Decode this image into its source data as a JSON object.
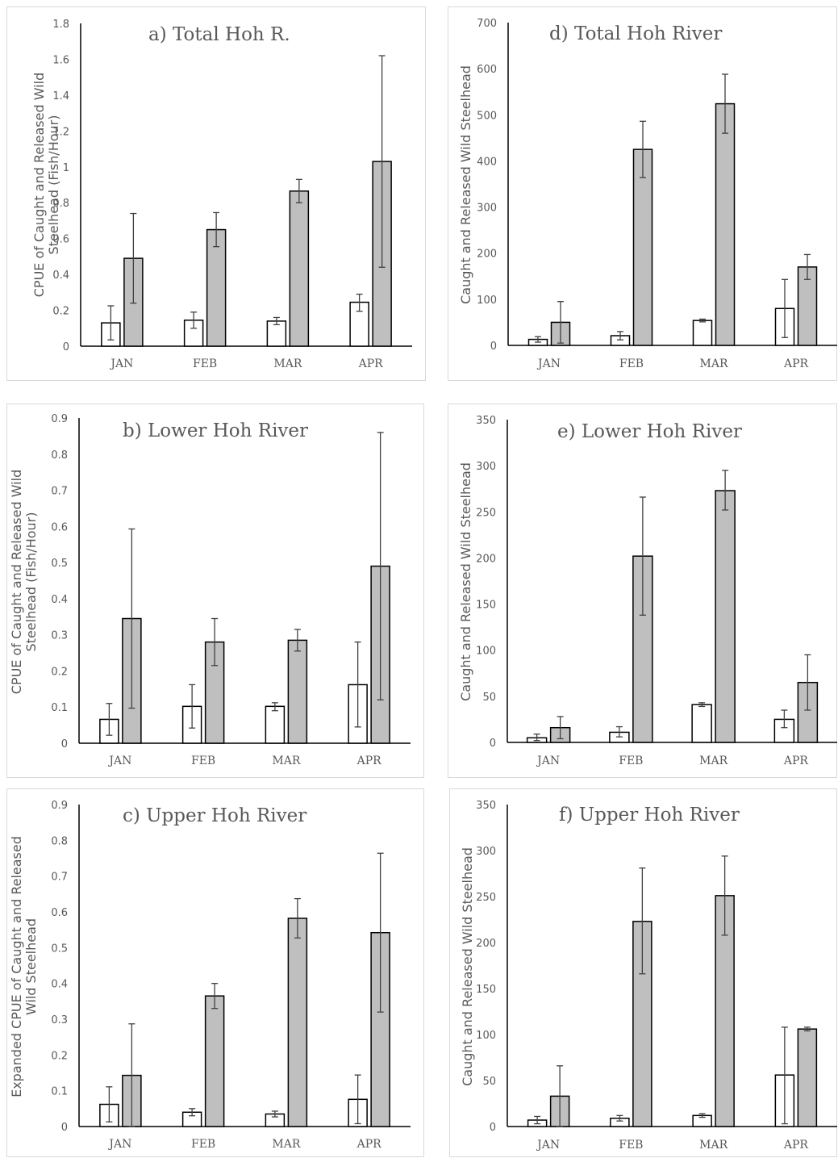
{
  "chart_data": [
    {
      "id": "a",
      "type": "bar",
      "title": "a) Total Hoh R.",
      "ylabel": [
        "CPUE of Caught and Released Wild",
        "Steelhead (Fish/Hour)"
      ],
      "categories": [
        "JAN",
        "FEB",
        "MAR",
        "APR"
      ],
      "ylim": [
        0,
        1.8
      ],
      "yticks": [
        "0",
        "0.2",
        "0.4",
        "0.6",
        "0.8",
        "1",
        "1.2",
        "1.4",
        "1.6",
        "1.8"
      ],
      "series": [
        {
          "color": "#ffffff",
          "values": [
            0.13,
            0.145,
            0.14,
            0.245
          ],
          "err_low": [
            0.035,
            0.1,
            0.12,
            0.195
          ],
          "err_high": [
            0.225,
            0.19,
            0.16,
            0.29
          ]
        },
        {
          "color": "#bfbfbf",
          "values": [
            0.49,
            0.65,
            0.865,
            1.03
          ],
          "err_low": [
            0.24,
            0.555,
            0.8,
            0.44
          ],
          "err_high": [
            0.74,
            0.745,
            0.93,
            1.62
          ]
        }
      ]
    },
    {
      "id": "b",
      "type": "bar",
      "title": "b) Lower Hoh River",
      "ylabel": [
        "CPUE of Caught and Released Wild",
        "Steelhead (Fish/Hour)"
      ],
      "categories": [
        "JAN",
        "FEB",
        "MAR",
        "APR"
      ],
      "ylim": [
        0,
        0.9
      ],
      "yticks": [
        "0",
        "0.1",
        "0.2",
        "0.3",
        "0.4",
        "0.5",
        "0.6",
        "0.7",
        "0.8",
        "0.9"
      ],
      "series": [
        {
          "color": "#ffffff",
          "values": [
            0.066,
            0.102,
            0.102,
            0.162
          ],
          "err_low": [
            0.022,
            0.042,
            0.09,
            0.045
          ],
          "err_high": [
            0.11,
            0.162,
            0.112,
            0.28
          ]
        },
        {
          "color": "#bfbfbf",
          "values": [
            0.345,
            0.28,
            0.285,
            0.49
          ],
          "err_low": [
            0.097,
            0.215,
            0.255,
            0.12
          ],
          "err_high": [
            0.593,
            0.345,
            0.315,
            0.86
          ]
        }
      ]
    },
    {
      "id": "c",
      "type": "bar",
      "title": "c) Upper Hoh River",
      "ylabel": [
        "Expanded CPUE of Caught and Released",
        "Wild Steelhead"
      ],
      "categories": [
        "JAN",
        "FEB",
        "MAR",
        "APR"
      ],
      "ylim": [
        0,
        0.9
      ],
      "yticks": [
        "0",
        "0.1",
        "0.2",
        "0.3",
        "0.4",
        "0.5",
        "0.6",
        "0.7",
        "0.8",
        "0.9"
      ],
      "series": [
        {
          "color": "#ffffff",
          "values": [
            0.062,
            0.04,
            0.035,
            0.076
          ],
          "err_low": [
            0.013,
            0.03,
            0.027,
            0.008
          ],
          "err_high": [
            0.111,
            0.05,
            0.043,
            0.144
          ]
        },
        {
          "color": "#bfbfbf",
          "values": [
            0.143,
            0.365,
            0.582,
            0.542
          ],
          "err_low": [
            0.0,
            0.33,
            0.527,
            0.32
          ],
          "err_high": [
            0.287,
            0.4,
            0.637,
            0.764
          ]
        }
      ]
    },
    {
      "id": "d",
      "type": "bar",
      "title": "d) Total Hoh River",
      "ylabel": [
        "Caught and Released Wild Steelhead"
      ],
      "categories": [
        "JAN",
        "FEB",
        "MAR",
        "APR"
      ],
      "ylim": [
        0,
        700
      ],
      "yticks": [
        "0",
        "100",
        "200",
        "300",
        "400",
        "500",
        "600",
        "700"
      ],
      "series": [
        {
          "color": "#ffffff",
          "values": [
            13,
            21,
            54,
            80
          ],
          "err_low": [
            7,
            12,
            51,
            17
          ],
          "err_high": [
            19,
            30,
            57,
            143
          ]
        },
        {
          "color": "#bfbfbf",
          "values": [
            50,
            425,
            524,
            170
          ],
          "err_low": [
            5,
            364,
            460,
            143
          ],
          "err_high": [
            95,
            486,
            588,
            197
          ]
        }
      ]
    },
    {
      "id": "e",
      "type": "bar",
      "title": "e) Lower Hoh River",
      "ylabel": [
        "Caught and Released Wild Steelhead"
      ],
      "categories": [
        "JAN",
        "FEB",
        "MAR",
        "APR"
      ],
      "ylim": [
        0,
        350
      ],
      "yticks": [
        "0",
        "50",
        "100",
        "150",
        "200",
        "250",
        "300",
        "350"
      ],
      "series": [
        {
          "color": "#ffffff",
          "values": [
            5,
            11,
            41,
            25
          ],
          "err_low": [
            2,
            6,
            39,
            16
          ],
          "err_high": [
            9,
            17,
            43,
            35
          ]
        },
        {
          "color": "#bfbfbf",
          "values": [
            16,
            202,
            273,
            65
          ],
          "err_low": [
            4,
            138,
            252,
            35
          ],
          "err_high": [
            28,
            266,
            295,
            95
          ]
        }
      ]
    },
    {
      "id": "f",
      "type": "bar",
      "title": "f) Upper Hoh River",
      "ylabel": [
        "Caught and Released Wild Steelhead"
      ],
      "categories": [
        "JAN",
        "FEB",
        "MAR",
        "APR"
      ],
      "ylim": [
        0,
        350
      ],
      "yticks": [
        "0",
        "50",
        "100",
        "150",
        "200",
        "250",
        "300",
        "350"
      ],
      "series": [
        {
          "color": "#ffffff",
          "values": [
            7,
            9,
            12,
            56
          ],
          "err_low": [
            3,
            6,
            10,
            3
          ],
          "err_high": [
            11,
            12,
            14,
            108
          ]
        },
        {
          "color": "#bfbfbf",
          "values": [
            33,
            223,
            251,
            106
          ],
          "err_low": [
            0,
            166,
            208,
            104
          ],
          "err_high": [
            66,
            281,
            294,
            108
          ]
        }
      ]
    }
  ]
}
